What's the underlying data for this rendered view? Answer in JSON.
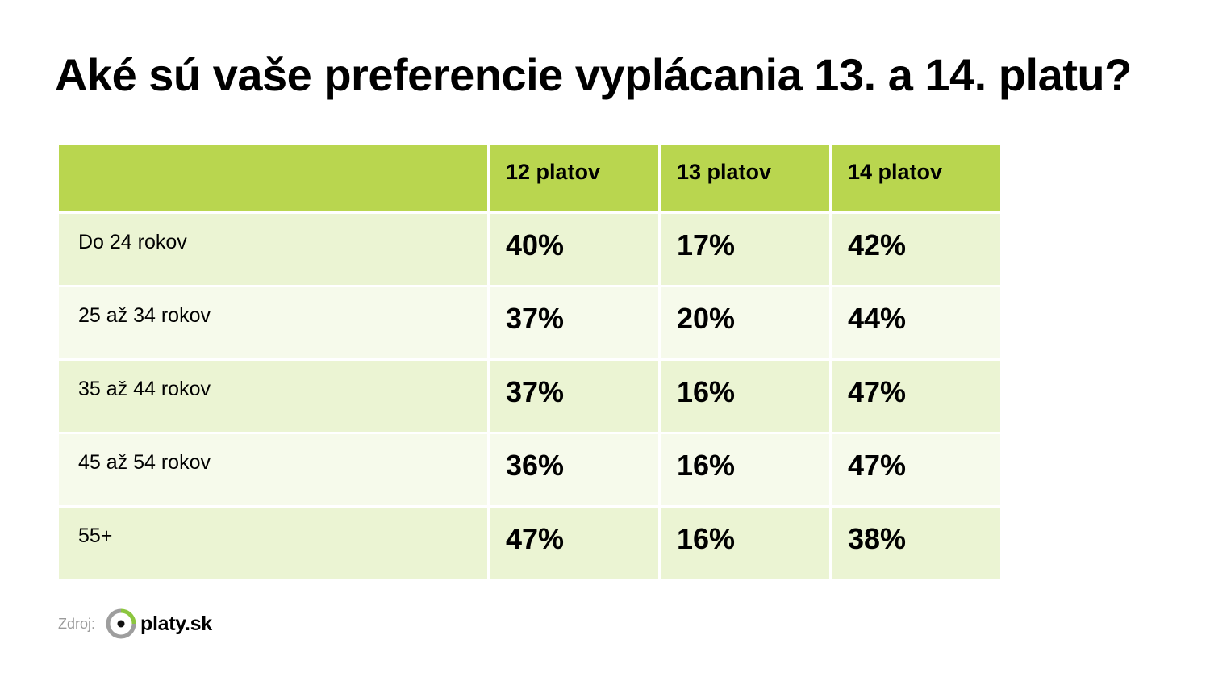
{
  "title": "Aké sú vaše preferencie vyplácania 13. a 14. platu?",
  "colors": {
    "header": "#b9d64f",
    "row_odd": "#ebf4d3",
    "row_even": "#f6faeb",
    "logo_green": "#8cc63f",
    "logo_gray": "#9e9e9e"
  },
  "table": {
    "columns": [
      "",
      "12 platov",
      "13 platov",
      "14 platov"
    ],
    "rows": [
      {
        "label": "Do 24 rokov",
        "values": [
          "40%",
          "17%",
          "42%"
        ]
      },
      {
        "label": "25 až 34 rokov",
        "values": [
          "37%",
          "20%",
          "44%"
        ]
      },
      {
        "label": "35 až 44 rokov",
        "values": [
          "37%",
          "16%",
          "47%"
        ]
      },
      {
        "label": "45 až 54 rokov",
        "values": [
          "36%",
          "16%",
          "47%"
        ]
      },
      {
        "label": "55+",
        "values": [
          "47%",
          "16%",
          "38%"
        ]
      }
    ]
  },
  "footer": {
    "source_label": "Zdroj:",
    "logo_icon": "platy-ring-icon",
    "logo_text": "platy.sk"
  },
  "chart_data": {
    "type": "table",
    "title": "Aké sú vaše preferencie vyplácania 13. a 14. platu?",
    "columns": [
      "12 platov",
      "13 platov",
      "14 platov"
    ],
    "categories": [
      "Do 24 rokov",
      "25 až 34 rokov",
      "35 až 44 rokov",
      "45 až 54 rokov",
      "55+"
    ],
    "series": [
      {
        "name": "12 platov",
        "values": [
          40,
          37,
          37,
          36,
          47
        ]
      },
      {
        "name": "13 platov",
        "values": [
          17,
          20,
          16,
          16,
          16
        ]
      },
      {
        "name": "14 platov",
        "values": [
          42,
          44,
          47,
          47,
          38
        ]
      }
    ],
    "unit": "%"
  }
}
